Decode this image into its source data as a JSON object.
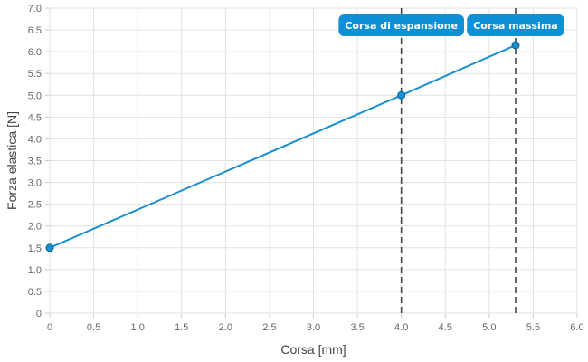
{
  "chart_data": {
    "type": "line",
    "xlabel": "Corsa [mm]",
    "ylabel": "Forza elastica [N]",
    "xlim": [
      0,
      6.0
    ],
    "ylim": [
      0,
      7.0
    ],
    "x_ticks": [
      "0",
      "0.5",
      "1.0",
      "1.5",
      "2.0",
      "2.5",
      "3.0",
      "3.5",
      "4.0",
      "4.5",
      "5.0",
      "5.5",
      "6.0"
    ],
    "y_ticks": [
      "0",
      "0.5",
      "1.0",
      "1.5",
      "2.0",
      "2.5",
      "3.0",
      "3.5",
      "4.0",
      "4.5",
      "5.0",
      "5.5",
      "6.0",
      "6.5",
      "7.0"
    ],
    "grid": true,
    "series": [
      {
        "color": "#1a8fd1",
        "points": [
          {
            "x": 0,
            "y": 1.5
          },
          {
            "x": 4.0,
            "y": 5.0
          },
          {
            "x": 5.3,
            "y": 6.15
          }
        ]
      }
    ],
    "annotations": [
      {
        "label": "Corsa di espansione",
        "x": 4.0
      },
      {
        "label": "Corsa massima",
        "x": 5.3
      }
    ],
    "annotation_color": "#0e8fd6",
    "vline_color": "#444444"
  }
}
